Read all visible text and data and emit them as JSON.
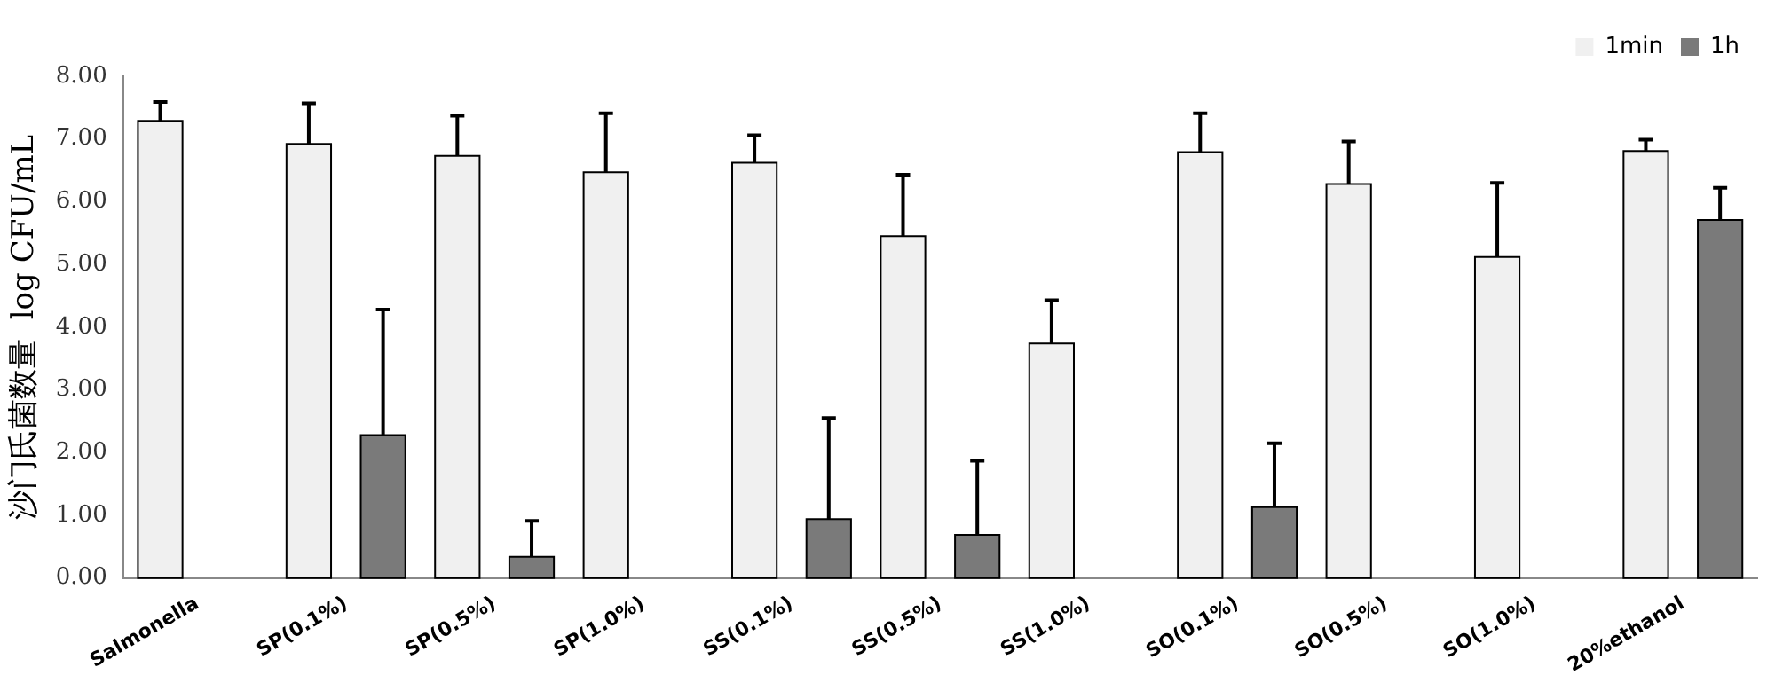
{
  "chart_data": {
    "type": "bar",
    "ylabel": "沙门氏菌数量  log CFU/mL",
    "categories": [
      "Salmonella",
      "SP(0.1%)",
      "SP(0.5%)",
      "SP(1.0%)",
      "SS(0.1%)",
      "SS(0.5%)",
      "SS(1.0%)",
      "SO(0.1%)",
      "SO(0.5%)",
      "SO(1.0%)",
      "20%ethanol"
    ],
    "series": [
      {
        "name": "1min",
        "color": "#f0f0f0",
        "values": [
          7.29,
          6.92,
          6.73,
          6.47,
          6.62,
          5.45,
          3.74,
          6.79,
          6.28,
          5.12,
          6.81
        ],
        "errors": [
          [
            7.29,
            7.59
          ],
          [
            6.92,
            7.57
          ],
          [
            6.73,
            7.37
          ],
          [
            6.47,
            7.41
          ],
          [
            6.62,
            7.06
          ],
          [
            5.45,
            6.43
          ],
          [
            3.74,
            4.43
          ],
          [
            6.79,
            7.41
          ],
          [
            6.28,
            6.96
          ],
          [
            5.12,
            6.3
          ],
          [
            6.81,
            6.99
          ]
        ]
      },
      {
        "name": "1h",
        "color": "#7a7a7a",
        "values": [
          null,
          2.28,
          0.34,
          null,
          0.94,
          0.69,
          null,
          1.13,
          null,
          null,
          5.71
        ],
        "errors": [
          null,
          [
            2.28,
            4.28
          ],
          [
            0.34,
            0.91
          ],
          null,
          [
            0.94,
            2.55
          ],
          [
            0.69,
            1.87
          ],
          null,
          [
            1.13,
            2.15
          ],
          null,
          null,
          [
            5.71,
            6.22
          ]
        ]
      }
    ],
    "ylim": [
      0,
      8
    ],
    "yticks": [
      {
        "value": 0,
        "label": "0.00"
      },
      {
        "value": 1,
        "label": "1.00"
      },
      {
        "value": 2,
        "label": "2.00"
      },
      {
        "value": 3,
        "label": "3.00"
      },
      {
        "value": 4,
        "label": "4.00"
      },
      {
        "value": 5,
        "label": "5.00"
      },
      {
        "value": 6,
        "label": "6.00"
      },
      {
        "value": 7,
        "label": "7.00"
      },
      {
        "value": 8,
        "label": "8.00"
      }
    ],
    "grid": false,
    "legend": "top right"
  }
}
